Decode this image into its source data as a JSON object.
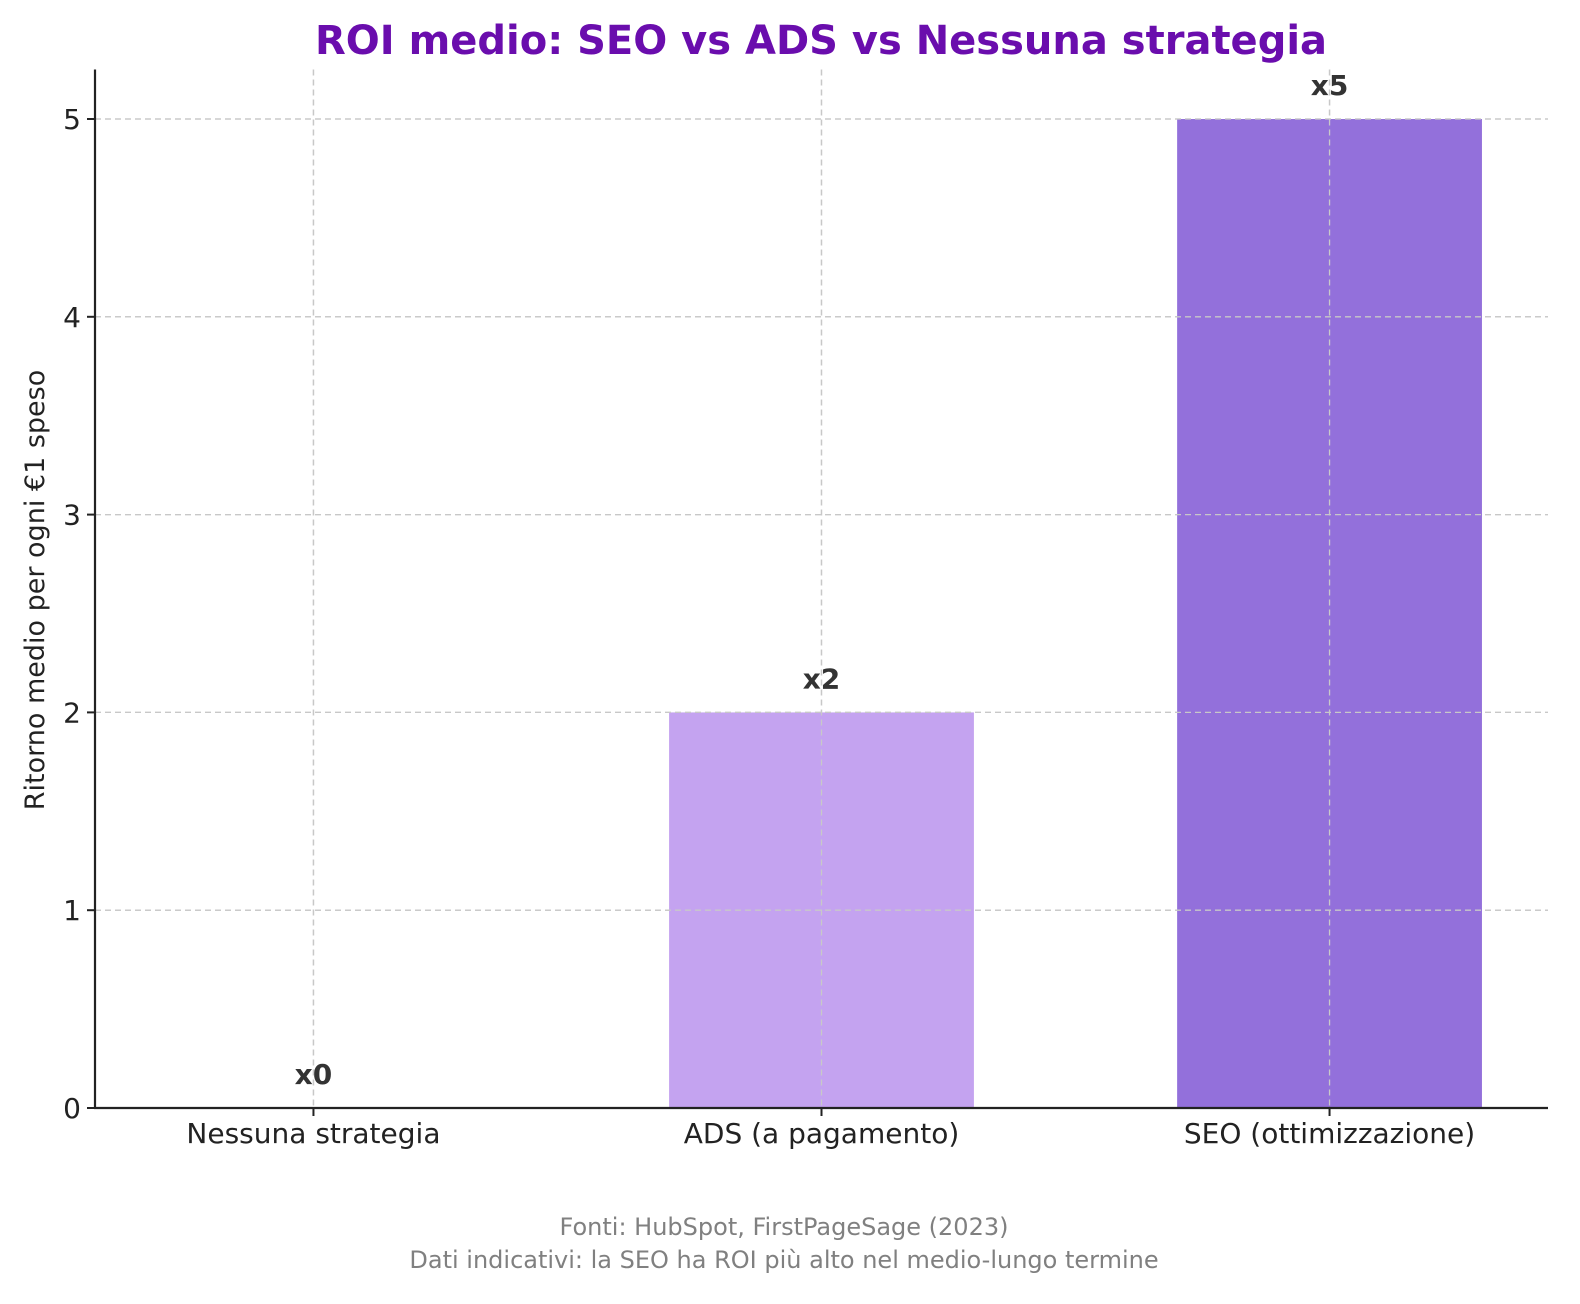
{
  "chart_data": {
    "type": "bar",
    "title": "ROI medio: SEO vs ADS vs Nessuna strategia",
    "xlabel": "",
    "ylabel": "Ritorno medio per ogni €1 speso",
    "categories": [
      "Nessuna strategia",
      "ADS (a pagamento)",
      "SEO (ottimizzazione)"
    ],
    "values": [
      0,
      2,
      5
    ],
    "data_labels": [
      "x0",
      "x2",
      "x5"
    ],
    "bar_colors": [
      "#ffffff",
      "#c4a3f0",
      "#9370db"
    ],
    "ylim": [
      0,
      5.25
    ],
    "yticks": [
      0,
      1,
      2,
      3,
      4,
      5
    ],
    "grid": true,
    "title_color": "#6a0dad",
    "footnote": [
      "Fonti: HubSpot, FirstPageSage (2023)",
      "Dati indicativi: la SEO ha ROI più alto nel medio-lungo termine"
    ]
  }
}
